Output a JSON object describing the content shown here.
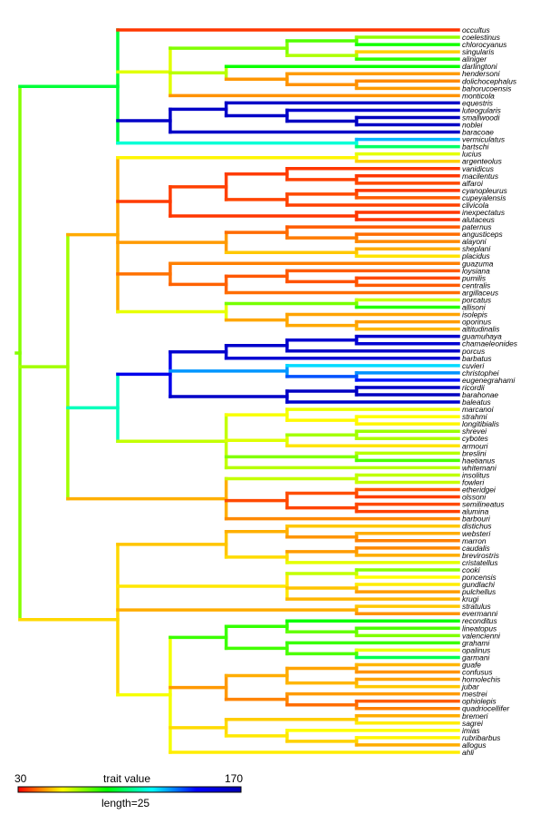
{
  "tips": [
    "occultus",
    "coelestinus",
    "chlorocyanus",
    "singularis",
    "aliniger",
    "darlingtoni",
    "hendersoni",
    "dolichocephalus",
    "bahorucoensis",
    "monticola",
    "equestris",
    "luteogularis",
    "smallwoodi",
    "noblei",
    "baracoae",
    "vermiculatus",
    "bartschi",
    "lucius",
    "argenteolus",
    "vanidicus",
    "macilentus",
    "alfaroi",
    "cyanopleurus",
    "cupeyalensis",
    "clivicola",
    "inexpectatus",
    "alutaceus",
    "paternus",
    "angusticeps",
    "alayoni",
    "sheplani",
    "placidus",
    "guazuma",
    "loysiana",
    "pumilis",
    "centralis",
    "argillaceus",
    "porcatus",
    "allisoni",
    "isolepis",
    "oporinus",
    "altitudinalis",
    "guamuhaya",
    "chamaeleonides",
    "porcus",
    "barbatus",
    "cuvieri",
    "christophei",
    "eugenegrahami",
    "ricordii",
    "barahonae",
    "baleatus",
    "marcanoi",
    "strahmi",
    "longitibialis",
    "shrevei",
    "cybotes",
    "armouri",
    "breslini",
    "haetianus",
    "whitemani",
    "insolitus",
    "fowleri",
    "etheridgei",
    "olssoni",
    "semilineatus",
    "alumina",
    "barbouri",
    "distichus",
    "websteri",
    "marron",
    "caudalis",
    "brevirostris",
    "cristatellus",
    "cooki",
    "poncensis",
    "gundlachi",
    "pulchellus",
    "krugi",
    "stratulus",
    "evermanni",
    "reconditus",
    "lineatopus",
    "valencienni",
    "grahami",
    "opalinus",
    "garmani",
    "guafe",
    "confusus",
    "homolechis",
    "jubar",
    "mestrei",
    "ophiolepis",
    "quadriocellifer",
    "bremeri",
    "sagrei",
    "imias",
    "rubribarbus",
    "allogus",
    "ahli"
  ],
  "tip_values": [
    36,
    70,
    84,
    53,
    81,
    85,
    47,
    45,
    47,
    46,
    162,
    160,
    165,
    163,
    162,
    122,
    97,
    61,
    53,
    36,
    36,
    38,
    36,
    40,
    37,
    36,
    36,
    40,
    42,
    45,
    49,
    55,
    44,
    40,
    38,
    40,
    42,
    64,
    82,
    48,
    47,
    50,
    160,
    158,
    162,
    158,
    118,
    126,
    140,
    162,
    165,
    160,
    60,
    58,
    57,
    69,
    67,
    55,
    66,
    78,
    66,
    65,
    64,
    40,
    37,
    38,
    37,
    45,
    52,
    49,
    44,
    45,
    49,
    61,
    71,
    58,
    56,
    47,
    50,
    52,
    46,
    86,
    78,
    72,
    80,
    60,
    95,
    50,
    46,
    48,
    52,
    47,
    40,
    44,
    49,
    56,
    58,
    57,
    49,
    56
  ],
  "legend": {
    "min_label": "30",
    "max_label": "170",
    "title": "trait value",
    "scale_label": "length=25"
  }
}
